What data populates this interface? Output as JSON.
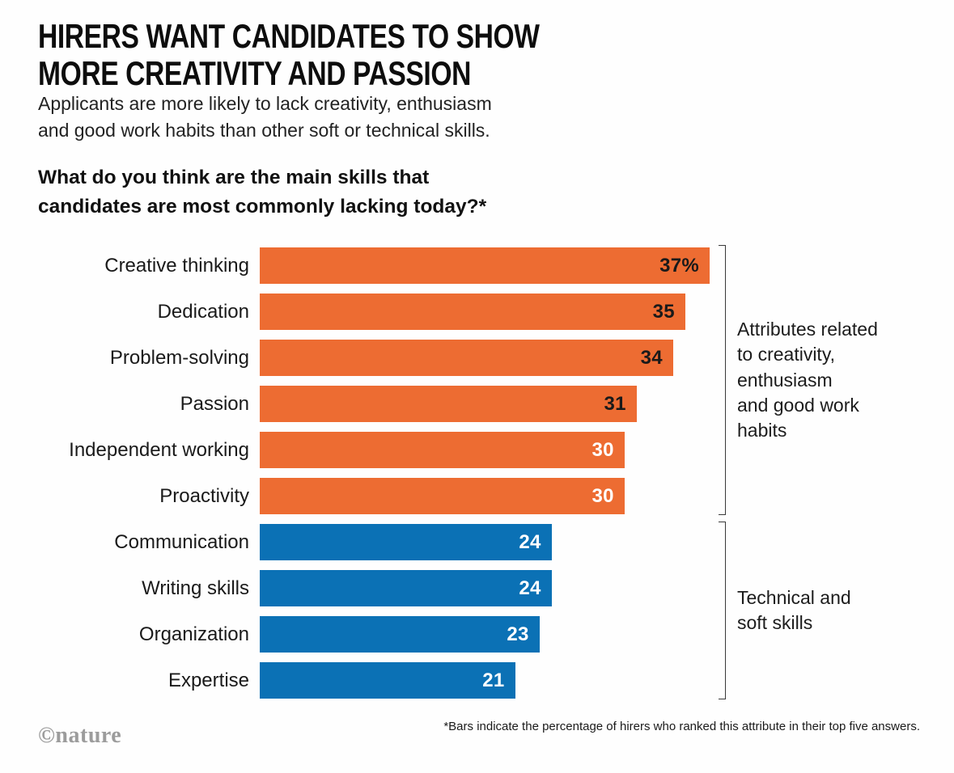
{
  "header": {
    "title": "HIRERS WANT CANDIDATES TO SHOW\nMORE CREATIVITY AND PASSION",
    "subtitle": "Applicants are more likely to lack creativity, enthusiasm\nand good work habits than other soft or technical skills.",
    "question": "What do you think are the main skills that\ncandidates are most commonly lacking today?*"
  },
  "chart_data": {
    "type": "bar",
    "orientation": "horizontal",
    "title": "What do you think are the main skills that candidates are most commonly lacking today?*",
    "categories": [
      "Creative thinking",
      "Dedication",
      "Problem-solving",
      "Passion",
      "Independent working",
      "Proactivity",
      "Communication",
      "Writing skills",
      "Organization",
      "Expertise"
    ],
    "values": [
      37,
      35,
      34,
      31,
      30,
      30,
      24,
      24,
      23,
      21
    ],
    "value_unit": "%",
    "xlim": [
      0,
      37
    ],
    "grid": false,
    "legend": "none",
    "bars": [
      {
        "label": "Creative thinking",
        "value": 37,
        "display": "37%",
        "group": "creativity",
        "value_label_style": "dark"
      },
      {
        "label": "Dedication",
        "value": 35,
        "display": "35",
        "group": "creativity",
        "value_label_style": "dark"
      },
      {
        "label": "Problem-solving",
        "value": 34,
        "display": "34",
        "group": "creativity",
        "value_label_style": "dark"
      },
      {
        "label": "Passion",
        "value": 31,
        "display": "31",
        "group": "creativity",
        "value_label_style": "dark"
      },
      {
        "label": "Independent working",
        "value": 30,
        "display": "30",
        "group": "creativity",
        "value_label_style": "light"
      },
      {
        "label": "Proactivity",
        "value": 30,
        "display": "30",
        "group": "creativity",
        "value_label_style": "light"
      },
      {
        "label": "Communication",
        "value": 24,
        "display": "24",
        "group": "technical",
        "value_label_style": "light"
      },
      {
        "label": "Writing skills",
        "value": 24,
        "display": "24",
        "group": "technical",
        "value_label_style": "light"
      },
      {
        "label": "Organization",
        "value": 23,
        "display": "23",
        "group": "technical",
        "value_label_style": "light"
      },
      {
        "label": "Expertise",
        "value": 21,
        "display": "21",
        "group": "technical",
        "value_label_style": "light"
      }
    ],
    "groups": [
      {
        "id": "creativity",
        "color": "#ED6C32",
        "annotation": "Attributes related\nto creativity,\nenthusiasm\nand good work\nhabits"
      },
      {
        "id": "technical",
        "color": "#0B71B5",
        "annotation": "Technical and\nsoft skills"
      }
    ]
  },
  "footer": {
    "footnote": "*Bars indicate the percentage of hirers who ranked this attribute in their top five answers.",
    "credit": "©nature"
  },
  "colors": {
    "background": "#FEFEFE",
    "orange": "#ED6C32",
    "blue": "#0B71B5",
    "text": "#1A1A1A",
    "value_dark": "#1A1A1A",
    "value_light": "#FFFFFF",
    "bracket": "#3A3A3A",
    "credit_gray": "#9C9C9C"
  }
}
